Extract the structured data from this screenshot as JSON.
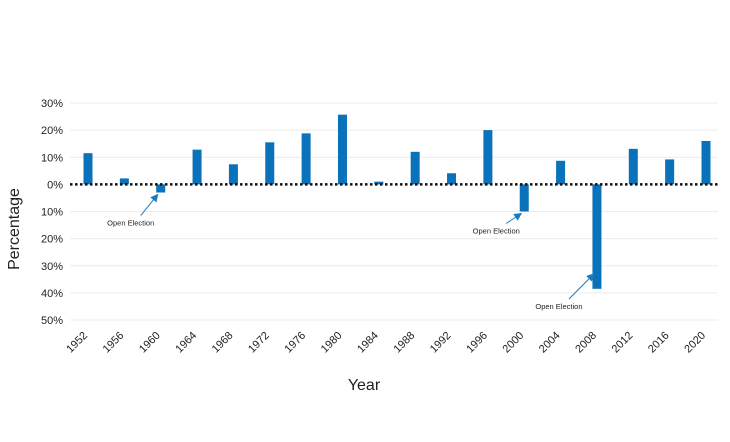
{
  "chart_data": {
    "type": "bar",
    "title": "",
    "xlabel": "Year",
    "ylabel": "Percentage",
    "categories": [
      "1952",
      "1956",
      "1960",
      "1964",
      "1968",
      "1972",
      "1976",
      "1980",
      "1984",
      "1988",
      "1992",
      "1996",
      "2000",
      "2004",
      "2008",
      "2012",
      "2016",
      "2020"
    ],
    "series": [
      {
        "values": [
          11.5,
          2.2,
          -3.0,
          12.8,
          7.4,
          15.5,
          18.8,
          25.7,
          1.0,
          12.0,
          4.1,
          20.0,
          -10.0,
          8.7,
          -38.5,
          13.1,
          9.2,
          16.0
        ]
      }
    ],
    "y_tick_labels": [
      "30%",
      "20%",
      "10%",
      "0%",
      "10%",
      "20%",
      "30%",
      "40%",
      "50%"
    ],
    "y_tick_values": [
      30,
      20,
      10,
      0,
      -10,
      -20,
      -30,
      -40,
      -50
    ],
    "ylim": [
      -50,
      30
    ],
    "grid": true,
    "legend": "none",
    "bar_color": "#0a72ba",
    "annotations": [
      {
        "text": "Open Election",
        "category": "1960",
        "value": -3.0
      },
      {
        "text": "Open Election",
        "category": "2000",
        "value": -10.0
      },
      {
        "text": "Open Election",
        "category": "2008",
        "value": -38.5
      }
    ],
    "annotation_color": "#1a7cc0"
  }
}
